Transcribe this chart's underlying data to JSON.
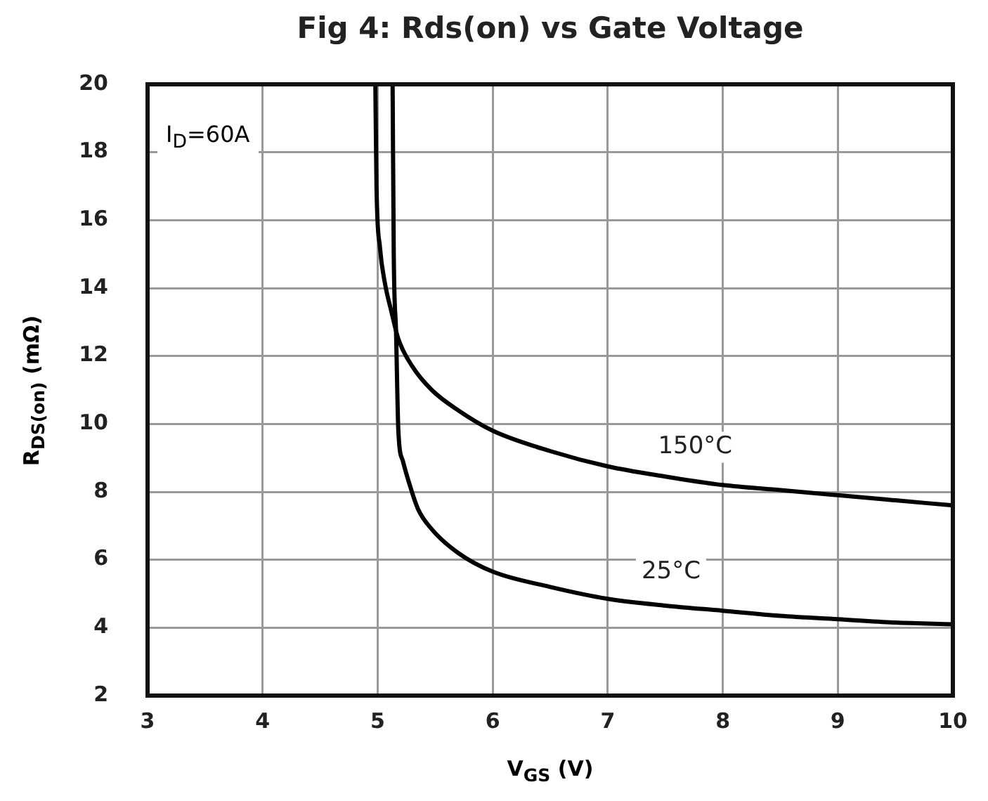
{
  "chart_data": {
    "type": "line",
    "title": "Fig 4: Rds(on) vs Gate Voltage",
    "xlabel": "V$_{GS}$ (V)",
    "ylabel": "R$_{DS(on)}$ (mΩ)",
    "annotations": [
      "I$_{D}$=60A"
    ],
    "xlim": [
      3,
      10
    ],
    "xticks": [
      3,
      4,
      5,
      6,
      7,
      8,
      9,
      10
    ],
    "ylim": [
      2,
      20
    ],
    "yticks": [
      2,
      4,
      6,
      8,
      10,
      12,
      14,
      16,
      18,
      20
    ],
    "grid": true,
    "legend": false,
    "marker": "none",
    "line_style": "solid",
    "series": [
      {
        "name": "150°C",
        "color": "#000000",
        "x": [
          4.98,
          4.99,
          5.02,
          5.06,
          5.12,
          5.18,
          5.3,
          5.47,
          5.7,
          6.0,
          6.5,
          7.0,
          7.5,
          8.0,
          8.5,
          9.0,
          9.5,
          10.0
        ],
        "values": [
          20,
          17,
          15.2,
          14.2,
          13.3,
          12.5,
          11.7,
          11.0,
          10.4,
          9.8,
          9.2,
          8.75,
          8.45,
          8.2,
          8.05,
          7.9,
          7.75,
          7.6
        ]
      },
      {
        "name": "25°C",
        "color": "#000000",
        "x": [
          5.13,
          5.14,
          5.16,
          5.18,
          5.22,
          5.27,
          5.35,
          5.47,
          5.7,
          6.0,
          6.5,
          7.0,
          7.5,
          8.0,
          8.5,
          9.0,
          9.5,
          10.0
        ],
        "values": [
          20,
          15,
          12.7,
          9.8,
          8.9,
          8.3,
          7.5,
          6.9,
          6.2,
          5.65,
          5.2,
          4.85,
          4.65,
          4.5,
          4.35,
          4.25,
          4.15,
          4.1
        ]
      }
    ]
  }
}
